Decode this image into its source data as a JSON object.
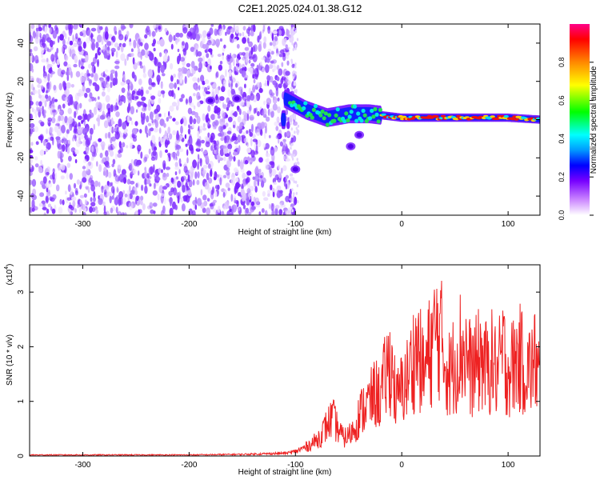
{
  "title": "C2E1.2025.024.01.38.G12",
  "colors": {
    "snr_line": "#ee2222",
    "spectrogram_purple": "#7a22ff",
    "colorbar": [
      "#ffffff",
      "#cc88ff",
      "#7700ff",
      "#0000ff",
      "#0099ff",
      "#00ffff",
      "#00ff00",
      "#ffff00",
      "#ff8800",
      "#ff0000",
      "#ff0088"
    ]
  },
  "chart_data": [
    {
      "type": "heatmap",
      "title": "",
      "xlabel": "Height of straight line (km)",
      "ylabel": "Frequency (Hz)",
      "xlim": [
        -350,
        130
      ],
      "ylim": [
        -50,
        50
      ],
      "xticks": [
        -300,
        -200,
        -100,
        0,
        100
      ],
      "yticks": [
        -40,
        -20,
        0,
        20,
        40
      ],
      "colorbar": {
        "label": "Normalized spectral amplitude",
        "range": [
          0,
          1
        ],
        "ticks": [
          "0.0",
          "0.2",
          "0.4",
          "0.6",
          "0.8"
        ]
      },
      "features": {
        "noise_region_x": [
          -350,
          -100
        ],
        "signal_track": [
          {
            "x": -110,
            "y": 11
          },
          {
            "x": -90,
            "y": 5
          },
          {
            "x": -70,
            "y": 1
          },
          {
            "x": -50,
            "y": 3
          },
          {
            "x": -30,
            "y": 3
          },
          {
            "x": 0,
            "y": 1
          },
          {
            "x": 50,
            "y": 1
          },
          {
            "x": 100,
            "y": 1
          },
          {
            "x": 130,
            "y": 0
          }
        ],
        "isolated_blobs": [
          {
            "x": -180,
            "y": 10
          },
          {
            "x": -155,
            "y": 11
          },
          {
            "x": -100,
            "y": -26
          },
          {
            "x": -48,
            "y": -14
          },
          {
            "x": -40,
            "y": -8
          }
        ]
      }
    },
    {
      "type": "line",
      "title": "",
      "xlabel": "Height of straight line (km)",
      "ylabel": "SNR (10 * v/v)",
      "yscale_label": "(x10",
      "yscale_exp": "4",
      "yscale_close": ")",
      "xlim": [
        -350,
        130
      ],
      "ylim": [
        0,
        3.5
      ],
      "xticks": [
        -300,
        -200,
        -100,
        0,
        100
      ],
      "yticks": [
        0,
        1,
        2,
        3
      ],
      "series": [
        {
          "x": [
            -350,
            -300,
            -250,
            -200,
            -150,
            -110,
            -100,
            -90,
            -80,
            -75,
            -70,
            -65,
            -60,
            -55,
            -50,
            -45,
            -40,
            -35,
            -30,
            -25,
            -20,
            -15,
            -10,
            -5,
            0,
            5,
            10,
            15,
            20,
            25,
            30,
            35,
            40,
            45,
            50,
            55,
            60,
            65,
            70,
            75,
            80,
            85,
            90,
            95,
            100,
            105,
            110,
            115,
            120,
            125,
            130
          ],
          "y": [
            0.02,
            0.02,
            0.02,
            0.02,
            0.03,
            0.05,
            0.1,
            0.2,
            0.35,
            0.5,
            0.7,
            0.85,
            0.6,
            0.4,
            0.45,
            0.6,
            0.9,
            1.1,
            1.2,
            1.4,
            1.3,
            1.8,
            2.1,
            1.2,
            1.5,
            1.7,
            2.1,
            2.4,
            1.8,
            2.2,
            2.6,
            2.8,
            2.2,
            1.8,
            2.1,
            2.4,
            2.3,
            1.9,
            2.0,
            2.2,
            1.9,
            2.1,
            1.8,
            2.3,
            1.9,
            2.0,
            2.2,
            2.0,
            1.9,
            2.1,
            1.8
          ]
        }
      ]
    }
  ]
}
